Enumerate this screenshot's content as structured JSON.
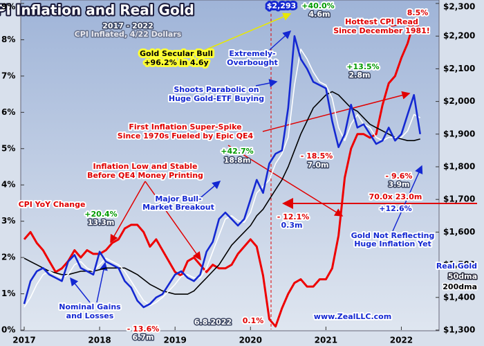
{
  "chart_data": {
    "type": "line",
    "title": "CPI Inflation and Real Gold",
    "x": [
      2017,
      2017.083,
      2017.167,
      2017.25,
      2017.333,
      2017.417,
      2017.5,
      2017.583,
      2017.667,
      2017.75,
      2017.833,
      2017.917,
      2018,
      2018.083,
      2018.167,
      2018.25,
      2018.333,
      2018.417,
      2018.5,
      2018.583,
      2018.667,
      2018.75,
      2018.833,
      2018.917,
      2019,
      2019.083,
      2019.167,
      2019.25,
      2019.333,
      2019.417,
      2019.5,
      2019.583,
      2019.667,
      2019.75,
      2019.833,
      2019.917,
      2020,
      2020.083,
      2020.167,
      2020.25,
      2020.333,
      2020.417,
      2020.5,
      2020.583,
      2020.667,
      2020.75,
      2020.833,
      2020.917,
      2021,
      2021.083,
      2021.167,
      2021.25,
      2021.333,
      2021.417,
      2021.5,
      2021.583,
      2021.667,
      2021.75,
      2021.833,
      2021.917,
      2022,
      2022.083,
      2022.167,
      2022.25
    ],
    "xlim": [
      2017,
      2022.5
    ],
    "xticks": [
      2017,
      2018,
      2019,
      2020,
      2021,
      2022
    ],
    "ylim": [
      0,
      9
    ],
    "yticks": [
      {
        "value": 0,
        "label": "0%"
      },
      {
        "value": 1,
        "label": "1%"
      },
      {
        "value": 2,
        "label": "2%"
      },
      {
        "value": 3,
        "label": "3%"
      },
      {
        "value": 4,
        "label": "4%"
      },
      {
        "value": 5,
        "label": "5%"
      },
      {
        "value": 6,
        "label": "6%"
      },
      {
        "value": 7,
        "label": "7%"
      },
      {
        "value": 8,
        "label": "8%"
      },
      {
        "value": 9,
        "label": "9%"
      }
    ],
    "y2lim": [
      1300,
      2300
    ],
    "y2ticks": [
      {
        "value": 1300,
        "label": "$1,300"
      },
      {
        "value": 1400,
        "label": "$1,400"
      },
      {
        "value": 1500,
        "label": "$1,500"
      },
      {
        "value": 1600,
        "label": "$1,600"
      },
      {
        "value": 1700,
        "label": "$1,700"
      },
      {
        "value": 1800,
        "label": "$1,800"
      },
      {
        "value": 1900,
        "label": "$1,900"
      },
      {
        "value": 2000,
        "label": "$2,000"
      },
      {
        "value": 2100,
        "label": "$2,100"
      },
      {
        "value": 2200,
        "label": "$2,200"
      },
      {
        "value": 2300,
        "label": "$2,300"
      }
    ],
    "legend": "bottom-right",
    "series": [
      {
        "name": "CPI YoY Change",
        "color": "#ee0000",
        "values": [
          2.5,
          2.7,
          2.4,
          2.2,
          1.9,
          1.6,
          1.7,
          1.9,
          2.2,
          2.0,
          2.2,
          2.1,
          2.1,
          2.2,
          2.4,
          2.5,
          2.8,
          2.9,
          2.9,
          2.7,
          2.3,
          2.5,
          2.2,
          1.9,
          1.6,
          1.5,
          1.9,
          2.0,
          1.8,
          1.6,
          1.8,
          1.7,
          1.7,
          1.8,
          2.1,
          2.3,
          2.5,
          2.3,
          1.5,
          0.3,
          0.1,
          0.6,
          1.0,
          1.3,
          1.4,
          1.2,
          1.2,
          1.4,
          1.4,
          1.7,
          2.6,
          4.2,
          5.0,
          5.4,
          5.4,
          5.3,
          5.4,
          6.2,
          6.8,
          7.0,
          7.5,
          7.9,
          8.5,
          8.3
        ]
      },
      {
        "name": "Real Gold",
        "color": "#1428d2",
        "axis": "y2",
        "values": [
          1380,
          1450,
          1480,
          1490,
          1470,
          1460,
          1450,
          1510,
          1530,
          1490,
          1480,
          1470,
          1540,
          1510,
          1500,
          1490,
          1450,
          1430,
          1390,
          1370,
          1380,
          1400,
          1410,
          1440,
          1470,
          1480,
          1460,
          1450,
          1470,
          1540,
          1570,
          1640,
          1660,
          1640,
          1620,
          1640,
          1700,
          1760,
          1720,
          1810,
          1840,
          1850,
          1980,
          2200,
          2130,
          2100,
          2060,
          2050,
          2040,
          1940,
          1860,
          1900,
          1990,
          1920,
          1930,
          1900,
          1870,
          1880,
          1920,
          1880,
          1900,
          1960,
          2020,
          1900
        ]
      },
      {
        "name": "50dma",
        "color": "#ffffff",
        "axis": "y2",
        "values": [
          1370,
          1400,
          1440,
          1470,
          1480,
          1470,
          1460,
          1470,
          1500,
          1510,
          1490,
          1480,
          1500,
          1520,
          1510,
          1500,
          1480,
          1450,
          1420,
          1390,
          1375,
          1385,
          1400,
          1420,
          1440,
          1465,
          1470,
          1460,
          1460,
          1490,
          1540,
          1590,
          1640,
          1650,
          1635,
          1630,
          1660,
          1720,
          1740,
          1760,
          1810,
          1840,
          1890,
          2050,
          2160,
          2130,
          2090,
          2060,
          2050,
          2010,
          1920,
          1880,
          1930,
          1960,
          1930,
          1920,
          1890,
          1880,
          1890,
          1890,
          1890,
          1910,
          1960,
          1950
        ]
      },
      {
        "name": "200dma",
        "color": "#000000",
        "axis": "y2",
        "values": [
          1520,
          1510,
          1500,
          1490,
          1480,
          1475,
          1470,
          1470,
          1475,
          1480,
          1480,
          1480,
          1485,
          1490,
          1490,
          1490,
          1490,
          1480,
          1470,
          1455,
          1440,
          1430,
          1420,
          1415,
          1410,
          1410,
          1410,
          1420,
          1440,
          1460,
          1480,
          1500,
          1530,
          1560,
          1580,
          1600,
          1620,
          1650,
          1670,
          1700,
          1730,
          1760,
          1800,
          1850,
          1900,
          1940,
          1980,
          2000,
          2020,
          2030,
          2020,
          2000,
          1980,
          1970,
          1950,
          1930,
          1920,
          1910,
          1900,
          1890,
          1885,
          1880,
          1880,
          1885
        ]
      }
    ],
    "annotations": [
      "2017 - 2022",
      "CPI Inflated, 4/22 Dollars",
      "Gold Secular Bull",
      "+96.2% in 4.6y",
      "$2,293",
      "+40.0%",
      "4.6m",
      "Extremely-",
      "Overbought",
      "8.5%",
      "Hottest CPI Read",
      "Since December 1981!",
      "+13.5%",
      "2.8m",
      "Shoots Parabolic on",
      "Huge Gold-ETF Buying",
      "First Inflation Super-Spike",
      "Since 1970s Fueled by Epic QE4",
      "+42.7%",
      "18.8m",
      "- 18.5%",
      "7.0m",
      "- 9.6%",
      "3.9m",
      "Inflation Low and Stable",
      "Before QE4 Money Printing",
      "Major Bull-",
      "Market Breakout",
      "70.0x 23.0m",
      "+12.6%",
      "+20.4%",
      "13.3m",
      "- 12.1%",
      "0.3m",
      "Gold Not Reflecting",
      "Huge Inflation Yet",
      "Nominal Gains",
      "and Losses",
      "- 13.6%",
      "6.7m",
      "6.8.2022",
      "0.1%",
      "www.ZealLLC.com"
    ]
  }
}
